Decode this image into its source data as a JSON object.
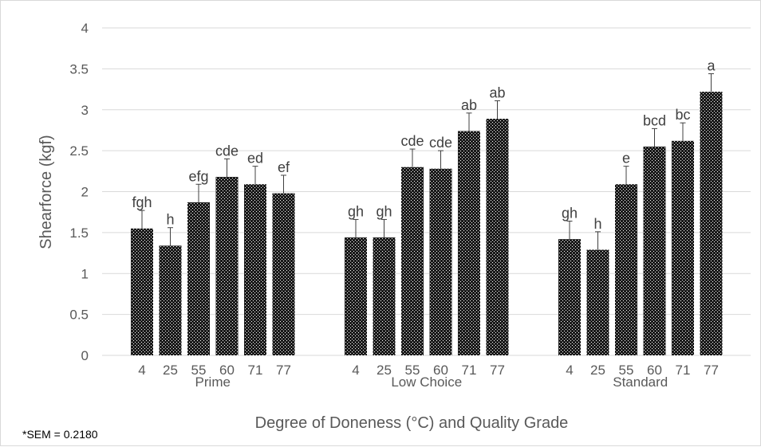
{
  "chart_data": {
    "type": "bar",
    "ylabel": "Shearforce (kgf)",
    "xlabel": "Degree of Doneness (°C) and Quality Grade",
    "footnote": "*SEM = 0.2180",
    "ylim": [
      0,
      4
    ],
    "yticks": [
      "0",
      "0.5",
      "1",
      "1.5",
      "2",
      "2.5",
      "3",
      "3.5",
      "4"
    ],
    "grid": true,
    "colors": {
      "bar": "#1a1a1a",
      "grid": "#d9d9d9",
      "error": "#404040"
    },
    "groups": [
      {
        "name": "Prime",
        "categories": [
          "4",
          "25",
          "55",
          "60",
          "71",
          "77"
        ],
        "values": [
          1.55,
          1.34,
          1.87,
          2.18,
          2.09,
          1.98
        ],
        "errors": [
          0.22,
          0.22,
          0.22,
          0.22,
          0.22,
          0.22
        ],
        "letters": [
          "fgh",
          "h",
          "efg",
          "cde",
          "ed",
          "ef"
        ]
      },
      {
        "name": "Low Choice",
        "categories": [
          "4",
          "25",
          "55",
          "60",
          "71",
          "77"
        ],
        "values": [
          1.44,
          1.44,
          2.3,
          2.28,
          2.74,
          2.89
        ],
        "errors": [
          0.22,
          0.22,
          0.22,
          0.22,
          0.22,
          0.22
        ],
        "letters": [
          "gh",
          "gh",
          "cde",
          "cde",
          "ab",
          "ab"
        ]
      },
      {
        "name": "Standard",
        "categories": [
          "4",
          "25",
          "55",
          "60",
          "71",
          "77"
        ],
        "values": [
          1.42,
          1.29,
          2.09,
          2.55,
          2.62,
          3.22
        ],
        "errors": [
          0.22,
          0.22,
          0.22,
          0.22,
          0.22,
          0.22
        ],
        "letters": [
          "gh",
          "h",
          "e",
          "bcd",
          "bc",
          "a"
        ]
      }
    ]
  }
}
